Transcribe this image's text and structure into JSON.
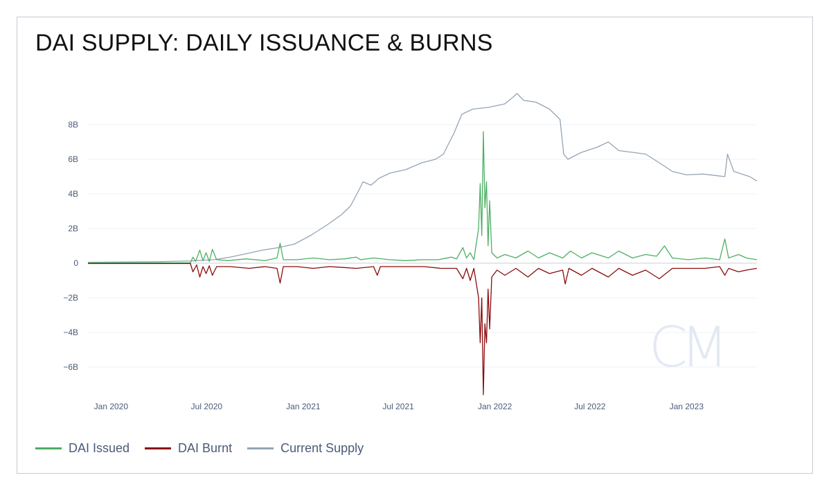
{
  "title": "DAI SUPPLY: DAILY ISSUANCE & BURNS",
  "watermark": "CM",
  "legend": [
    {
      "label": "DAI Issued",
      "color": "#4caf63"
    },
    {
      "label": "DAI Burnt",
      "color": "#8b0a0a"
    },
    {
      "label": "Current Supply",
      "color": "#95a4b4"
    }
  ],
  "chart_data": {
    "type": "line",
    "title": "DAI SUPPLY: DAILY ISSUANCE & BURNS",
    "xlabel": "",
    "ylabel": "",
    "x_range": [
      "2019-11-18",
      "2023-05-15"
    ],
    "ylim": [
      -7.8,
      10
    ],
    "y_ticks": [
      {
        "value": 8,
        "label": "8B"
      },
      {
        "value": 6,
        "label": "6B"
      },
      {
        "value": 4,
        "label": "4B"
      },
      {
        "value": 2,
        "label": "2B"
      },
      {
        "value": 0,
        "label": "0"
      },
      {
        "value": -2,
        "label": "−2B"
      },
      {
        "value": -4,
        "label": "−4B"
      },
      {
        "value": -6,
        "label": "−6B"
      }
    ],
    "x_ticks": [
      {
        "value": "2020-01-01",
        "label": "Jan 2020"
      },
      {
        "value": "2020-07-01",
        "label": "Jul 2020"
      },
      {
        "value": "2021-01-01",
        "label": "Jan 2021"
      },
      {
        "value": "2021-07-01",
        "label": "Jul 2021"
      },
      {
        "value": "2022-01-01",
        "label": "Jan 2022"
      },
      {
        "value": "2022-07-01",
        "label": "Jul 2022"
      },
      {
        "value": "2023-01-01",
        "label": "Jan 2023"
      }
    ],
    "grid": true,
    "legend_position": "bottom-left",
    "series": [
      {
        "name": "Current Supply",
        "color": "#95a4b4",
        "points": [
          [
            "2019-11-18",
            0.05
          ],
          [
            "2020-02-01",
            0.07
          ],
          [
            "2020-04-01",
            0.09
          ],
          [
            "2020-06-01",
            0.13
          ],
          [
            "2020-07-15",
            0.2
          ],
          [
            "2020-08-15",
            0.35
          ],
          [
            "2020-09-15",
            0.55
          ],
          [
            "2020-10-15",
            0.75
          ],
          [
            "2020-11-15",
            0.9
          ],
          [
            "2020-12-15",
            1.1
          ],
          [
            "2021-01-15",
            1.6
          ],
          [
            "2021-02-15",
            2.2
          ],
          [
            "2021-03-15",
            2.8
          ],
          [
            "2021-04-01",
            3.3
          ],
          [
            "2021-04-15",
            4.1
          ],
          [
            "2021-04-25",
            4.7
          ],
          [
            "2021-05-10",
            4.5
          ],
          [
            "2021-05-25",
            4.9
          ],
          [
            "2021-06-15",
            5.2
          ],
          [
            "2021-07-15",
            5.4
          ],
          [
            "2021-08-15",
            5.8
          ],
          [
            "2021-09-10",
            6.0
          ],
          [
            "2021-09-25",
            6.3
          ],
          [
            "2021-10-15",
            7.5
          ],
          [
            "2021-10-30",
            8.6
          ],
          [
            "2021-11-20",
            8.9
          ],
          [
            "2021-12-20",
            9.0
          ],
          [
            "2022-01-20",
            9.2
          ],
          [
            "2022-02-05",
            9.6
          ],
          [
            "2022-02-12",
            9.8
          ],
          [
            "2022-02-25",
            9.4
          ],
          [
            "2022-03-20",
            9.3
          ],
          [
            "2022-04-15",
            8.9
          ],
          [
            "2022-05-05",
            8.3
          ],
          [
            "2022-05-12",
            6.3
          ],
          [
            "2022-05-20",
            6.0
          ],
          [
            "2022-06-15",
            6.4
          ],
          [
            "2022-07-15",
            6.7
          ],
          [
            "2022-08-05",
            7.0
          ],
          [
            "2022-08-25",
            6.5
          ],
          [
            "2022-09-20",
            6.4
          ],
          [
            "2022-10-15",
            6.3
          ],
          [
            "2022-11-10",
            5.8
          ],
          [
            "2022-12-05",
            5.3
          ],
          [
            "2023-01-01",
            5.1
          ],
          [
            "2023-02-01",
            5.15
          ],
          [
            "2023-03-01",
            5.05
          ],
          [
            "2023-03-15",
            5.0
          ],
          [
            "2023-03-20",
            6.3
          ],
          [
            "2023-04-01",
            5.3
          ],
          [
            "2023-05-01",
            5.0
          ],
          [
            "2023-05-15",
            4.75
          ]
        ]
      },
      {
        "name": "DAI Issued",
        "color": "#4caf63",
        "points": [
          [
            "2019-11-18",
            0.02
          ],
          [
            "2020-05-31",
            0.02
          ],
          [
            "2020-06-05",
            0.35
          ],
          [
            "2020-06-10",
            0.1
          ],
          [
            "2020-06-18",
            0.75
          ],
          [
            "2020-06-24",
            0.15
          ],
          [
            "2020-06-30",
            0.6
          ],
          [
            "2020-07-06",
            0.1
          ],
          [
            "2020-07-12",
            0.8
          ],
          [
            "2020-07-20",
            0.2
          ],
          [
            "2020-08-10",
            0.15
          ],
          [
            "2020-09-15",
            0.25
          ],
          [
            "2020-10-20",
            0.15
          ],
          [
            "2020-11-12",
            0.3
          ],
          [
            "2020-11-18",
            1.15
          ],
          [
            "2020-11-24",
            0.2
          ],
          [
            "2020-12-20",
            0.2
          ],
          [
            "2021-01-20",
            0.3
          ],
          [
            "2021-02-20",
            0.2
          ],
          [
            "2021-03-20",
            0.25
          ],
          [
            "2021-04-12",
            0.35
          ],
          [
            "2021-04-20",
            0.2
          ],
          [
            "2021-05-15",
            0.3
          ],
          [
            "2021-06-15",
            0.2
          ],
          [
            "2021-07-15",
            0.15
          ],
          [
            "2021-08-15",
            0.2
          ],
          [
            "2021-09-15",
            0.2
          ],
          [
            "2021-10-10",
            0.35
          ],
          [
            "2021-10-20",
            0.25
          ],
          [
            "2021-11-01",
            0.9
          ],
          [
            "2021-11-08",
            0.3
          ],
          [
            "2021-11-15",
            0.6
          ],
          [
            "2021-11-22",
            0.2
          ],
          [
            "2021-12-01",
            2.0
          ],
          [
            "2021-12-04",
            4.6
          ],
          [
            "2021-12-07",
            1.6
          ],
          [
            "2021-12-10",
            7.6
          ],
          [
            "2021-12-13",
            3.2
          ],
          [
            "2021-12-16",
            4.7
          ],
          [
            "2021-12-19",
            1.0
          ],
          [
            "2021-12-22",
            3.6
          ],
          [
            "2021-12-26",
            0.6
          ],
          [
            "2022-01-05",
            0.3
          ],
          [
            "2022-01-20",
            0.5
          ],
          [
            "2022-02-10",
            0.3
          ],
          [
            "2022-03-05",
            0.7
          ],
          [
            "2022-03-25",
            0.3
          ],
          [
            "2022-04-15",
            0.6
          ],
          [
            "2022-05-10",
            0.3
          ],
          [
            "2022-05-25",
            0.7
          ],
          [
            "2022-06-15",
            0.3
          ],
          [
            "2022-07-05",
            0.6
          ],
          [
            "2022-08-05",
            0.3
          ],
          [
            "2022-08-25",
            0.7
          ],
          [
            "2022-09-20",
            0.3
          ],
          [
            "2022-10-15",
            0.5
          ],
          [
            "2022-11-05",
            0.4
          ],
          [
            "2022-11-20",
            1.0
          ],
          [
            "2022-12-05",
            0.3
          ],
          [
            "2023-01-05",
            0.2
          ],
          [
            "2023-02-05",
            0.3
          ],
          [
            "2023-03-05",
            0.2
          ],
          [
            "2023-03-15",
            1.4
          ],
          [
            "2023-03-22",
            0.3
          ],
          [
            "2023-04-10",
            0.5
          ],
          [
            "2023-04-25",
            0.3
          ],
          [
            "2023-05-15",
            0.2
          ]
        ]
      },
      {
        "name": "DAI Burnt",
        "color": "#8b0a0a",
        "points": [
          [
            "2019-11-18",
            -0.02
          ],
          [
            "2020-05-31",
            -0.02
          ],
          [
            "2020-06-05",
            -0.5
          ],
          [
            "2020-06-12",
            -0.1
          ],
          [
            "2020-06-18",
            -0.8
          ],
          [
            "2020-06-24",
            -0.2
          ],
          [
            "2020-06-30",
            -0.6
          ],
          [
            "2020-07-06",
            -0.15
          ],
          [
            "2020-07-12",
            -0.7
          ],
          [
            "2020-07-20",
            -0.2
          ],
          [
            "2020-08-15",
            -0.2
          ],
          [
            "2020-09-20",
            -0.3
          ],
          [
            "2020-10-20",
            -0.2
          ],
          [
            "2020-11-12",
            -0.3
          ],
          [
            "2020-11-18",
            -1.15
          ],
          [
            "2020-11-24",
            -0.2
          ],
          [
            "2020-12-20",
            -0.2
          ],
          [
            "2021-01-20",
            -0.3
          ],
          [
            "2021-02-20",
            -0.2
          ],
          [
            "2021-03-20",
            -0.25
          ],
          [
            "2021-04-12",
            -0.3
          ],
          [
            "2021-05-15",
            -0.2
          ],
          [
            "2021-05-22",
            -0.7
          ],
          [
            "2021-05-28",
            -0.2
          ],
          [
            "2021-06-20",
            -0.2
          ],
          [
            "2021-07-20",
            -0.2
          ],
          [
            "2021-08-20",
            -0.2
          ],
          [
            "2021-09-20",
            -0.3
          ],
          [
            "2021-10-20",
            -0.3
          ],
          [
            "2021-11-01",
            -0.9
          ],
          [
            "2021-11-08",
            -0.3
          ],
          [
            "2021-11-15",
            -1.0
          ],
          [
            "2021-11-22",
            -0.3
          ],
          [
            "2021-12-01",
            -2.0
          ],
          [
            "2021-12-04",
            -4.6
          ],
          [
            "2021-12-07",
            -2.0
          ],
          [
            "2021-12-10",
            -7.6
          ],
          [
            "2021-12-13",
            -3.5
          ],
          [
            "2021-12-16",
            -4.6
          ],
          [
            "2021-12-19",
            -1.5
          ],
          [
            "2021-12-22",
            -3.8
          ],
          [
            "2021-12-26",
            -0.8
          ],
          [
            "2022-01-05",
            -0.4
          ],
          [
            "2022-01-20",
            -0.7
          ],
          [
            "2022-02-10",
            -0.3
          ],
          [
            "2022-03-05",
            -0.8
          ],
          [
            "2022-03-25",
            -0.3
          ],
          [
            "2022-04-15",
            -0.6
          ],
          [
            "2022-05-10",
            -0.4
          ],
          [
            "2022-05-15",
            -1.2
          ],
          [
            "2022-05-22",
            -0.3
          ],
          [
            "2022-06-15",
            -0.7
          ],
          [
            "2022-07-05",
            -0.3
          ],
          [
            "2022-08-05",
            -0.8
          ],
          [
            "2022-08-25",
            -0.3
          ],
          [
            "2022-09-20",
            -0.7
          ],
          [
            "2022-10-15",
            -0.4
          ],
          [
            "2022-11-10",
            -0.9
          ],
          [
            "2022-12-05",
            -0.3
          ],
          [
            "2023-01-05",
            -0.3
          ],
          [
            "2023-02-05",
            -0.3
          ],
          [
            "2023-03-05",
            -0.2
          ],
          [
            "2023-03-15",
            -0.7
          ],
          [
            "2023-03-22",
            -0.3
          ],
          [
            "2023-04-10",
            -0.5
          ],
          [
            "2023-04-25",
            -0.4
          ],
          [
            "2023-05-15",
            -0.3
          ]
        ]
      }
    ]
  }
}
